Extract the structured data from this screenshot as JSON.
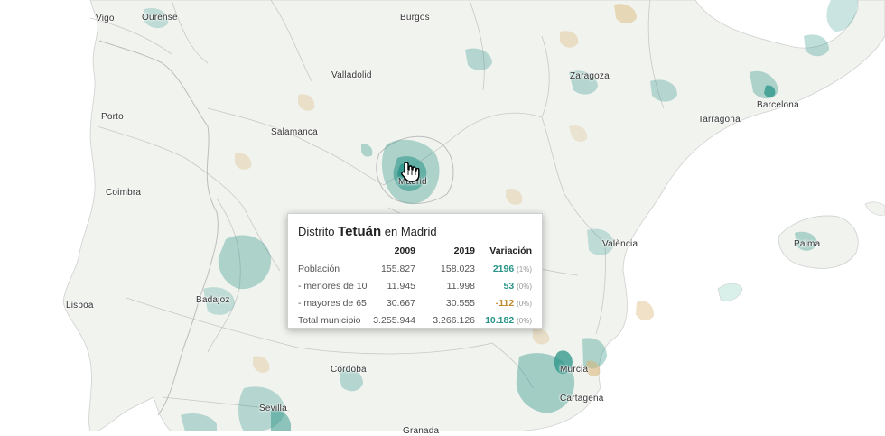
{
  "cities": [
    {
      "name": "Vigo"
    },
    {
      "name": "Ourense"
    },
    {
      "name": "Burgos"
    },
    {
      "name": "Valladolid"
    },
    {
      "name": "Zaragoza"
    },
    {
      "name": "Porto"
    },
    {
      "name": "Barcelona"
    },
    {
      "name": "Tarragona"
    },
    {
      "name": "Salamanca"
    },
    {
      "name": "Madrid"
    },
    {
      "name": "Coimbra"
    },
    {
      "name": "València"
    },
    {
      "name": "Palma"
    },
    {
      "name": "Badajoz"
    },
    {
      "name": "Lisboa"
    },
    {
      "name": "Córdoba"
    },
    {
      "name": "Murcia"
    },
    {
      "name": "Cartagena"
    },
    {
      "name": "Sevilla"
    },
    {
      "name": "Granada"
    }
  ],
  "colors": {
    "growth": "#2a9488",
    "decline": "#c08a2c",
    "land": "#f1f3ef",
    "border": "#c8c8c8"
  },
  "tooltip": {
    "prefix": "Distrito",
    "district": "Tetuán",
    "suffix": "en Madrid",
    "headers": [
      "",
      "2009",
      "2019",
      "Variación"
    ],
    "rows": [
      {
        "label": "Población",
        "y2009": "155.827",
        "y2019": "158.023",
        "variation": "2196",
        "pct": "(1%)",
        "trend": "pos"
      },
      {
        "label": "- menores de 10",
        "y2009": "11.945",
        "y2019": "11.998",
        "variation": "53",
        "pct": "(0%)",
        "trend": "pos"
      },
      {
        "label": "- mayores de 65",
        "y2009": "30.667",
        "y2019": "30.555",
        "variation": "-112",
        "pct": "(0%)",
        "trend": "neg"
      },
      {
        "label": "Total municipio",
        "y2009": "3.255.944",
        "y2019": "3.266.126",
        "variation": "10.182",
        "pct": "(0%)",
        "trend": "pos"
      }
    ]
  },
  "cursor": {
    "icon": "hand-pointer-icon"
  }
}
